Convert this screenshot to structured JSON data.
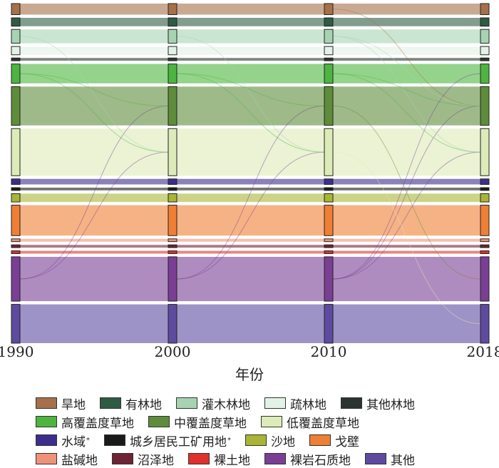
{
  "chart_data": {
    "type": "sankey",
    "xlabel": "年份",
    "stages": [
      "1990",
      "2000",
      "2010",
      "2018"
    ],
    "categories": [
      {
        "name": "旱地",
        "color": "#A5704A",
        "values": [
          4,
          4,
          4,
          4
        ]
      },
      {
        "name": "有林地",
        "color": "#2F5A43",
        "values": [
          3,
          3,
          3,
          3
        ]
      },
      {
        "name": "灌木林地",
        "color": "#A7D3B2",
        "values": [
          5,
          5,
          5,
          5
        ]
      },
      {
        "name": "疏林地",
        "color": "#E2F2E4",
        "values": [
          3,
          3,
          3,
          3
        ]
      },
      {
        "name": "其他林地",
        "color": "#2B3430",
        "values": [
          1,
          1,
          1,
          1
        ]
      },
      {
        "name": "高覆盖度草地",
        "color": "#4CB540",
        "values": [
          7,
          7,
          7,
          7
        ]
      },
      {
        "name": "中覆盖度草地",
        "color": "#5E8C3A",
        "values": [
          14,
          14,
          14,
          14
        ]
      },
      {
        "name": "低覆盖度草地",
        "color": "#DDEBB8",
        "values": [
          17,
          17,
          17,
          17
        ]
      },
      {
        "name": "水域",
        "color": "#3E2E8C",
        "values": [
          2,
          2,
          2,
          2
        ]
      },
      {
        "name": "城乡居民工矿用地",
        "color": "#1A1A1A",
        "values": [
          1,
          1,
          1,
          1
        ]
      },
      {
        "name": "沙地",
        "color": "#A9B535",
        "values": [
          3,
          3,
          3,
          3
        ]
      },
      {
        "name": "戈壁",
        "color": "#EE7F34",
        "values": [
          11,
          11,
          11,
          11
        ]
      },
      {
        "name": "盐碱地",
        "color": "#F0927A",
        "values": [
          1,
          1,
          1,
          1
        ]
      },
      {
        "name": "沼泽地",
        "color": "#6E2435",
        "values": [
          1,
          1,
          1,
          1
        ]
      },
      {
        "name": "裸土地",
        "color": "#E0302B",
        "values": [
          1,
          1,
          1,
          1
        ]
      },
      {
        "name": "裸岩石质地",
        "color": "#7A3F94",
        "values": [
          16,
          16,
          16,
          16
        ]
      },
      {
        "name": "其他",
        "color": "#5E4BA0",
        "values": [
          14,
          14,
          14,
          14
        ]
      }
    ]
  },
  "legend": {
    "rows": [
      [
        {
          "label": "旱地",
          "color": "#A5704A"
        },
        {
          "label": "有林地",
          "color": "#2F5A43"
        },
        {
          "label": "灌木林地",
          "color": "#A7D3B2"
        },
        {
          "label": "疏林地",
          "color": "#E2F2E4"
        },
        {
          "label": "其他林地",
          "color": "#2B3430"
        }
      ],
      [
        {
          "label": "高覆盖度草地",
          "color": "#4CB540"
        },
        {
          "label": "中覆盖度草地",
          "color": "#5E8C3A"
        },
        {
          "label": "低覆盖度草地",
          "color": "#DDEBB8"
        }
      ],
      [
        {
          "label": "水域",
          "sup": "*",
          "color": "#3E2E8C"
        },
        {
          "label": "城乡居民工矿用地",
          "sup": "*",
          "color": "#1A1A1A"
        },
        {
          "label": "沙地",
          "color": "#A9B535"
        },
        {
          "label": "戈壁",
          "color": "#EE7F34"
        }
      ],
      [
        {
          "label": "盐碱地",
          "color": "#F0927A"
        },
        {
          "label": "沼泽地",
          "color": "#6E2435"
        },
        {
          "label": "裸土地",
          "color": "#E0302B"
        },
        {
          "label": "裸岩石质地",
          "color": "#7A3F94"
        },
        {
          "label": "其他",
          "color": "#5E4BA0"
        }
      ]
    ]
  }
}
